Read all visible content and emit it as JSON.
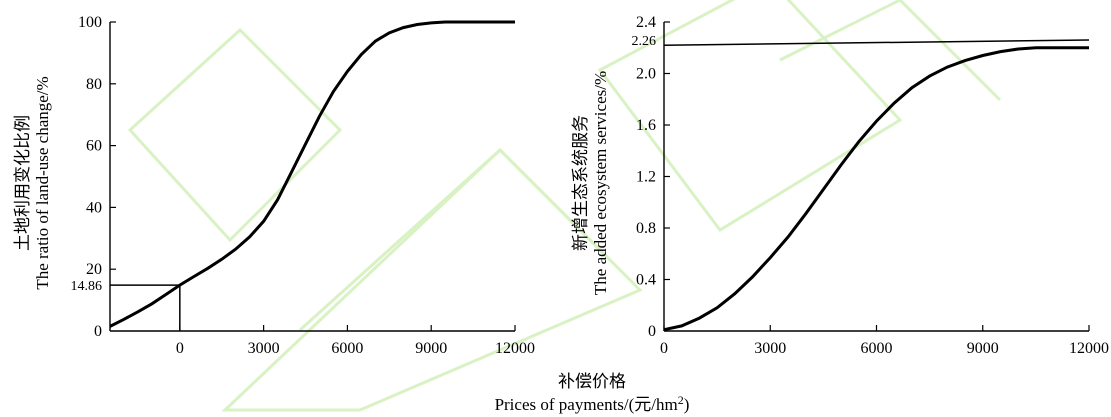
{
  "chart_data": [
    {
      "type": "line",
      "ylabel_cn": "土地利用变化比例",
      "ylabel_en": "The ratio of land-use change/%",
      "xlim": [
        -2500,
        12000
      ],
      "ylim": [
        0,
        100
      ],
      "xticks": [
        0,
        3000,
        6000,
        9000,
        12000
      ],
      "xtick_labels": [
        "0",
        "3000",
        "6000",
        "9000",
        "12000"
      ],
      "yticks": [
        0,
        20,
        40,
        60,
        80,
        100
      ],
      "ytick_labels": [
        "0",
        "20",
        "40",
        "60",
        "80",
        "100"
      ],
      "annotation": {
        "x": 0,
        "y": 14.86,
        "label": "14.86"
      },
      "series": [
        {
          "x": [
            -2500,
            -2000,
            -1500,
            -1000,
            -500,
            0,
            500,
            1000,
            1500,
            2000,
            2500,
            3000,
            3500,
            4000,
            4500,
            5000,
            5500,
            6000,
            6500,
            7000,
            7500,
            8000,
            8500,
            9000,
            9500,
            10000,
            10500,
            11000,
            12000
          ],
          "y": [
            1.5,
            3.8,
            6.2,
            8.8,
            11.8,
            14.86,
            17.6,
            20.3,
            23.2,
            26.5,
            30.5,
            35.5,
            42.5,
            51.5,
            60.5,
            69.5,
            77.5,
            84,
            89.5,
            93.8,
            96.5,
            98.2,
            99.2,
            99.7,
            100,
            100,
            100,
            100,
            100
          ]
        }
      ]
    },
    {
      "type": "line",
      "ylabel_cn": "新增生态系统服务",
      "ylabel_en": "The added ecosystem services/%",
      "xlim": [
        0,
        12000
      ],
      "ylim": [
        0,
        2.4
      ],
      "xticks": [
        0,
        3000,
        6000,
        9000,
        12000
      ],
      "xtick_labels": [
        "0",
        "3000",
        "6000",
        "9000",
        "12000"
      ],
      "yticks": [
        0,
        0.4,
        0.8,
        1.2,
        1.6,
        2.0,
        2.4
      ],
      "ytick_labels": [
        "0",
        "0.4",
        "0.8",
        "1.2",
        "1.6",
        "2.0",
        "2.4"
      ],
      "annotation": {
        "y": 2.26,
        "label": "2.26"
      },
      "series": [
        {
          "x": [
            0,
            500,
            1000,
            1500,
            2000,
            2500,
            3000,
            3500,
            4000,
            4500,
            5000,
            5500,
            6000,
            6500,
            7000,
            7500,
            8000,
            8500,
            9000,
            9500,
            10000,
            10500,
            11000,
            12000
          ],
          "y": [
            0.01,
            0.04,
            0.1,
            0.18,
            0.29,
            0.42,
            0.57,
            0.73,
            0.91,
            1.1,
            1.29,
            1.47,
            1.63,
            1.77,
            1.89,
            1.98,
            2.05,
            2.1,
            2.14,
            2.17,
            2.19,
            2.2,
            2.2,
            2.2
          ]
        },
        {
          "x": [
            0,
            12000
          ],
          "y": [
            2.22,
            2.26
          ]
        }
      ]
    }
  ],
  "shared_xlabel_cn": "补偿价格",
  "shared_xlabel_en": "Prices of payments/(元/hm",
  "shared_xlabel_sup": "2",
  "shared_xlabel_end": ")"
}
